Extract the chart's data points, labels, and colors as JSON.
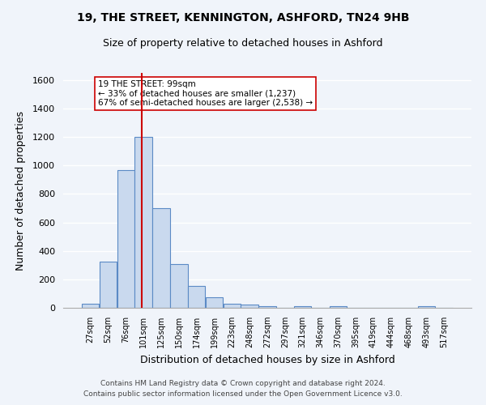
{
  "title1": "19, THE STREET, KENNINGTON, ASHFORD, TN24 9HB",
  "title2": "Size of property relative to detached houses in Ashford",
  "xlabel": "Distribution of detached houses by size in Ashford",
  "ylabel": "Number of detached properties",
  "footer1": "Contains HM Land Registry data © Crown copyright and database right 2024.",
  "footer2": "Contains public sector information licensed under the Open Government Licence v3.0.",
  "bar_labels": [
    "27sqm",
    "52sqm",
    "76sqm",
    "101sqm",
    "125sqm",
    "150sqm",
    "174sqm",
    "199sqm",
    "223sqm",
    "248sqm",
    "272sqm",
    "297sqm",
    "321sqm",
    "346sqm",
    "370sqm",
    "395sqm",
    "419sqm",
    "444sqm",
    "468sqm",
    "493sqm",
    "517sqm"
  ],
  "bar_values": [
    28,
    325,
    970,
    1200,
    700,
    305,
    155,
    75,
    30,
    20,
    13,
    0,
    12,
    0,
    13,
    0,
    0,
    0,
    0,
    13,
    0
  ],
  "bar_color": "#c9d9ee",
  "bar_edgecolor": "#5b8ac5",
  "bg_color": "#f0f4fa",
  "grid_color": "#ffffff",
  "property_value": 99,
  "annotation_line1": "19 THE STREET: 99sqm",
  "annotation_line2": "← 33% of detached houses are smaller (1,237)",
  "annotation_line3": "67% of semi-detached houses are larger (2,538) →",
  "vline_color": "#cc0000",
  "annotation_box_edgecolor": "#cc0000",
  "ylim": [
    0,
    1650
  ],
  "yticks": [
    0,
    200,
    400,
    600,
    800,
    1000,
    1200,
    1400,
    1600
  ]
}
